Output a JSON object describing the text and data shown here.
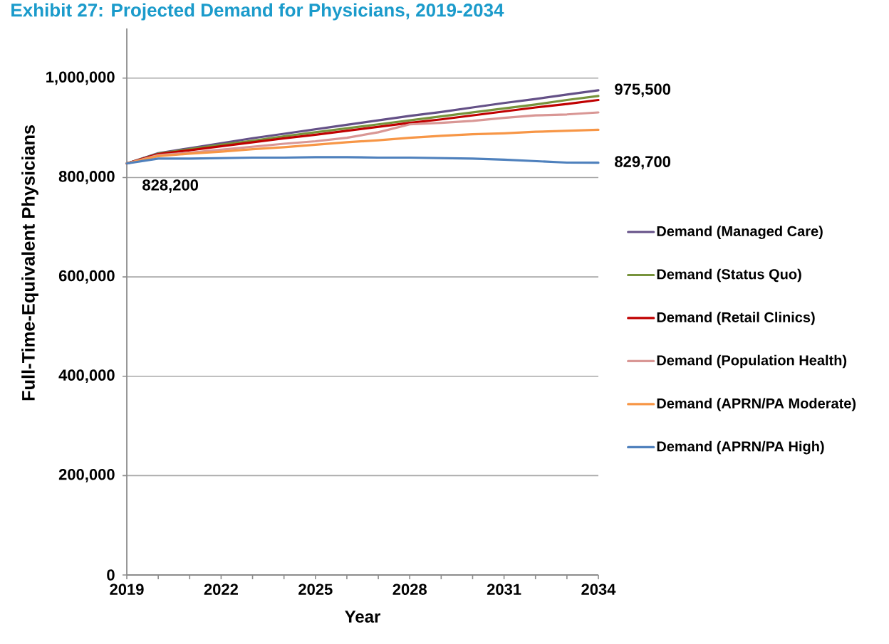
{
  "chart_data": {
    "type": "line",
    "title": "Exhibit 27: Projected Demand for Physicians, 2019-2034",
    "xlabel": "Year",
    "ylabel": "Full-Time-Equivalent Physicians",
    "x": [
      2019,
      2020,
      2021,
      2022,
      2023,
      2024,
      2025,
      2026,
      2027,
      2028,
      2029,
      2030,
      2031,
      2032,
      2033,
      2034
    ],
    "series": [
      {
        "name": "Demand (Managed Care)",
        "color": "#645087",
        "values": [
          828200,
          849000,
          859000,
          869000,
          879000,
          888000,
          897000,
          906000,
          915000,
          924000,
          932000,
          941000,
          950000,
          958000,
          967000,
          975500
        ],
        "value_labels": [
          null,
          null,
          null,
          null,
          null,
          null,
          null,
          null,
          null,
          null,
          null,
          null,
          null,
          null,
          null,
          "975,500"
        ]
      },
      {
        "name": "Demand (Status Quo)",
        "color": "#77933c",
        "values": [
          828200,
          848000,
          857000,
          866000,
          874000,
          883000,
          891000,
          899000,
          907000,
          915000,
          923000,
          931000,
          939000,
          947000,
          956000,
          964000
        ]
      },
      {
        "name": "Demand (Retail Clinics)",
        "color": "#c00000",
        "values": [
          828200,
          847000,
          855000,
          863000,
          871000,
          879000,
          886000,
          894000,
          902000,
          910000,
          917000,
          925000,
          933000,
          941000,
          948000,
          956000
        ]
      },
      {
        "name": "Demand (Population Health)",
        "color": "#d99795",
        "values": [
          828200,
          845000,
          850000,
          856000,
          862000,
          868000,
          873000,
          880000,
          891000,
          907000,
          910000,
          914000,
          920000,
          925000,
          927000,
          931000
        ]
      },
      {
        "name": "Demand (APRN/PA Moderate)",
        "color": "#f79646",
        "values": [
          828200,
          843000,
          848000,
          852000,
          857000,
          861000,
          866000,
          871000,
          875000,
          880000,
          884000,
          887000,
          889000,
          892000,
          894000,
          896000
        ]
      },
      {
        "name": "Demand (APRN/PA High)",
        "color": "#4f81bd",
        "values": [
          828200,
          838000,
          838000,
          839000,
          840000,
          840000,
          841000,
          841000,
          840000,
          840000,
          839000,
          838000,
          836000,
          833000,
          830000,
          829700
        ],
        "value_labels": [
          "828,200",
          null,
          null,
          null,
          null,
          null,
          null,
          null,
          null,
          null,
          null,
          null,
          null,
          null,
          null,
          "829,700"
        ]
      }
    ],
    "xlim": [
      2019,
      2034
    ],
    "ylim": [
      0,
      1100000
    ],
    "xticks": [
      2019,
      {
        "value": 2020,
        "label": null
      },
      {
        "value": 2021,
        "label": null
      },
      2022,
      {
        "value": 2023,
        "label": null
      },
      {
        "value": 2024,
        "label": null
      },
      2025,
      {
        "value": 2026,
        "label": null
      },
      {
        "value": 2027,
        "label": null
      },
      2028,
      {
        "value": 2029,
        "label": null
      },
      {
        "value": 2030,
        "label": null
      },
      2031,
      {
        "value": 2032,
        "label": null
      },
      {
        "value": 2033,
        "label": null
      },
      2034
    ],
    "yticks": [
      0,
      {
        "value": 200000,
        "label": "200,000"
      },
      {
        "value": 400000,
        "label": "400,000"
      },
      {
        "value": 600000,
        "label": "600,000"
      },
      {
        "value": 800000,
        "label": "800,000"
      },
      {
        "value": 1000000,
        "label": "1,000,000"
      }
    ],
    "grid": "y",
    "legend": "right",
    "line_style": "solid"
  }
}
